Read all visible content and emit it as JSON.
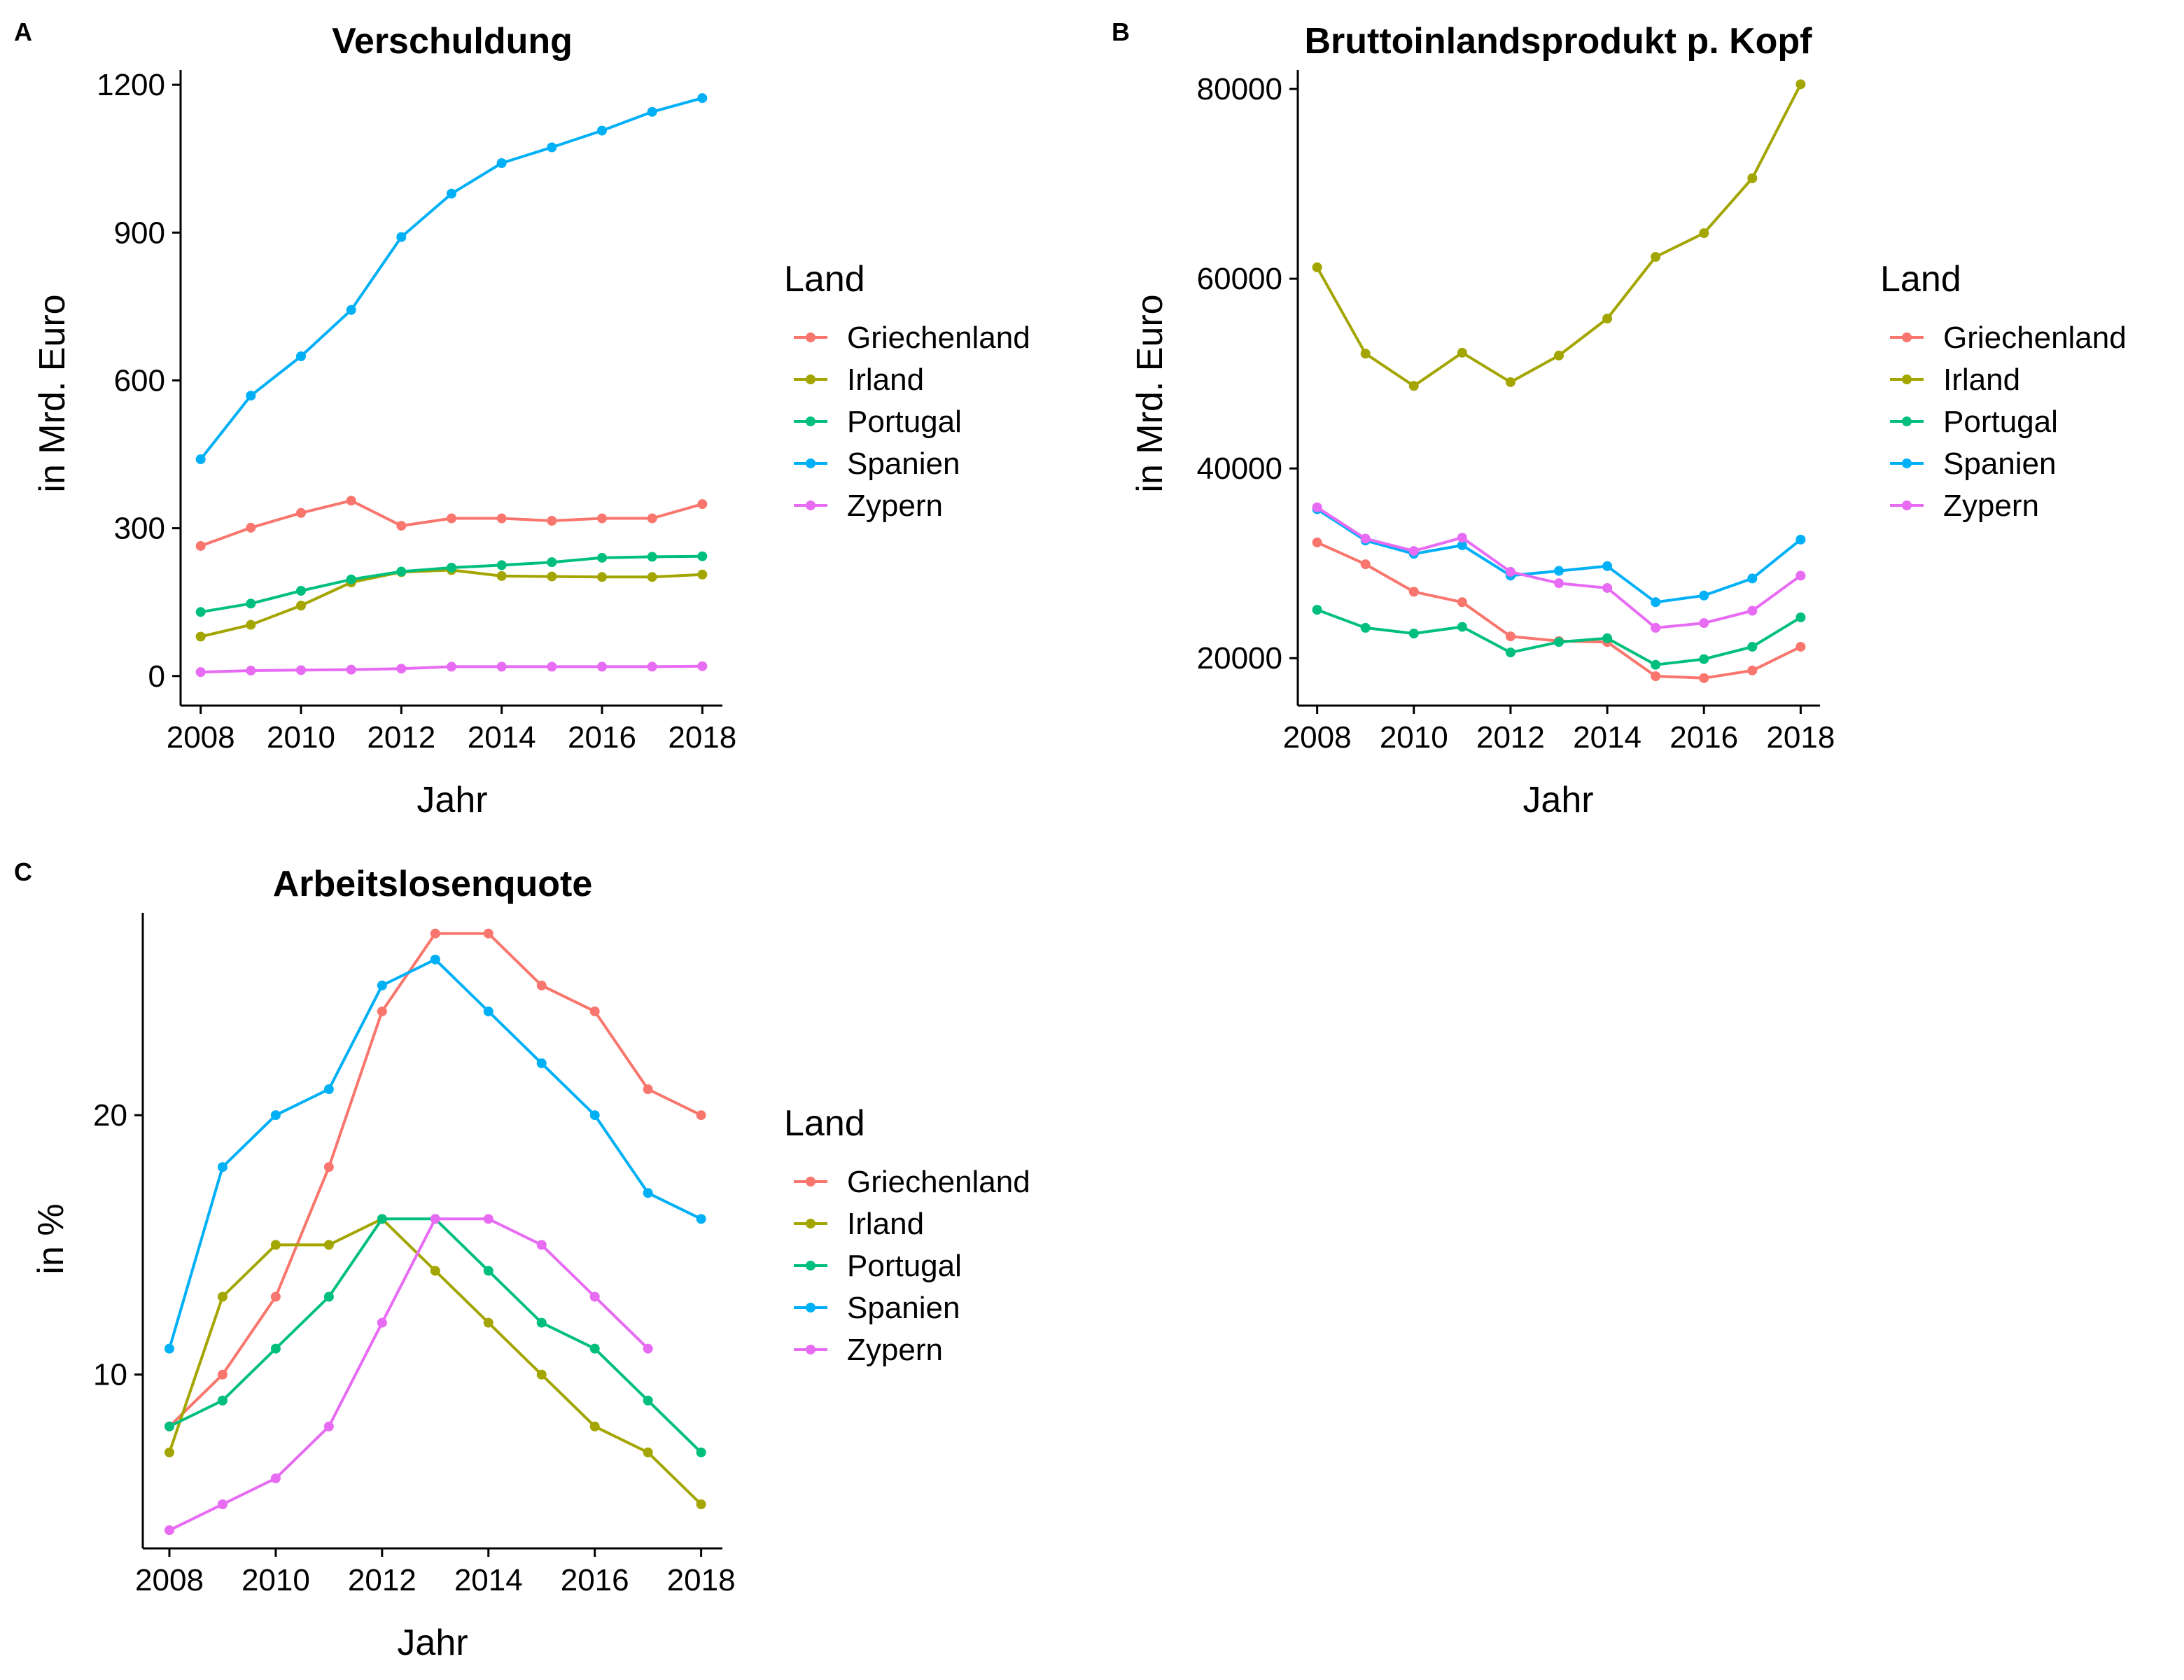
{
  "colors": {
    "Griechenland": "#F8766D",
    "Irland": "#A3A500",
    "Portugal": "#00BF7D",
    "Spanien": "#00B0F6",
    "Zypern": "#E76BF3"
  },
  "chart_data": [
    {
      "panel": "A",
      "type": "line",
      "title": "Verschuldung",
      "xlabel": "Jahr",
      "ylabel": "in Mrd. Euro",
      "legend_title": "Land",
      "legend_position": "right",
      "grid": false,
      "x": [
        2008,
        2009,
        2010,
        2011,
        2012,
        2013,
        2014,
        2015,
        2016,
        2017,
        2018
      ],
      "xlim": [
        2007.6,
        2018.4
      ],
      "ylim": [
        -60,
        1230
      ],
      "xticks": [
        2008,
        2010,
        2012,
        2014,
        2016,
        2018
      ],
      "yticks": [
        0,
        300,
        600,
        900,
        1200
      ],
      "series": [
        {
          "name": "Griechenland",
          "values": [
            264,
            301,
            331,
            356,
            305,
            320,
            320,
            315,
            320,
            320,
            349
          ]
        },
        {
          "name": "Irland",
          "values": [
            80,
            104,
            143,
            190,
            211,
            215,
            203,
            202,
            201,
            201,
            206
          ]
        },
        {
          "name": "Portugal",
          "values": [
            130,
            147,
            173,
            196,
            212,
            220,
            225,
            231,
            240,
            242,
            243
          ]
        },
        {
          "name": "Spanien",
          "values": [
            440,
            569,
            649,
            743,
            891,
            979,
            1041,
            1073,
            1107,
            1145,
            1173
          ]
        },
        {
          "name": "Zypern",
          "values": [
            8,
            11,
            12,
            13,
            15,
            19,
            19,
            19,
            19,
            19,
            20
          ]
        }
      ]
    },
    {
      "panel": "B",
      "type": "line",
      "title": "Bruttoinlandsprodukt p. Kopf",
      "xlabel": "Jahr",
      "ylabel": "in Mrd. Euro",
      "legend_title": "Land",
      "legend_position": "right",
      "grid": false,
      "x": [
        2008,
        2009,
        2010,
        2011,
        2012,
        2013,
        2014,
        2015,
        2016,
        2017,
        2018
      ],
      "xlim": [
        2007.6,
        2018.4
      ],
      "ylim": [
        15000,
        82000
      ],
      "xticks": [
        2008,
        2010,
        2012,
        2014,
        2016,
        2018
      ],
      "yticks": [
        20000,
        40000,
        60000,
        80000
      ],
      "series": [
        {
          "name": "Griechenland",
          "values": [
            32200,
            29900,
            27000,
            25900,
            22300,
            21800,
            21700,
            18100,
            17900,
            18700,
            21200
          ]
        },
        {
          "name": "Irland",
          "values": [
            61200,
            52100,
            48700,
            52200,
            49100,
            51900,
            55800,
            62300,
            64800,
            70600,
            80500
          ]
        },
        {
          "name": "Portugal",
          "values": [
            25100,
            23200,
            22600,
            23300,
            20600,
            21700,
            22100,
            19300,
            19900,
            21200,
            24300
          ]
        },
        {
          "name": "Spanien",
          "values": [
            35700,
            32400,
            31000,
            31900,
            28700,
            29200,
            29700,
            25900,
            26600,
            28400,
            32500
          ]
        },
        {
          "name": "Zypern",
          "values": [
            35900,
            32600,
            31300,
            32700,
            29100,
            27900,
            27400,
            23200,
            23700,
            25000,
            28700
          ]
        }
      ]
    },
    {
      "panel": "C",
      "type": "line",
      "title": "Arbeitslosenquote",
      "xlabel": "Jahr",
      "ylabel": "in %",
      "legend_title": "Land",
      "legend_position": "right",
      "grid": false,
      "x": [
        2008,
        2009,
        2010,
        2011,
        2012,
        2013,
        2014,
        2015,
        2016,
        2017,
        2018
      ],
      "xlim": [
        2007.5,
        2018.4
      ],
      "ylim": [
        3.3,
        27.8
      ],
      "xticks": [
        2008,
        2010,
        2012,
        2014,
        2016,
        2018
      ],
      "yticks": [
        10,
        20
      ],
      "series": [
        {
          "name": "Griechenland",
          "values": [
            8,
            10,
            13,
            18,
            24,
            27,
            27,
            25,
            24,
            21,
            20
          ]
        },
        {
          "name": "Irland",
          "values": [
            7,
            13,
            15,
            15,
            16,
            14,
            12,
            10,
            8,
            7,
            5
          ]
        },
        {
          "name": "Portugal",
          "values": [
            8,
            9,
            11,
            13,
            16,
            16,
            14,
            12,
            11,
            9,
            7
          ]
        },
        {
          "name": "Spanien",
          "values": [
            11,
            18,
            20,
            21,
            25,
            26,
            24,
            22,
            20,
            17,
            16
          ]
        },
        {
          "name": "Zypern",
          "values": [
            4,
            5,
            6,
            8,
            12,
            16,
            16,
            15,
            13,
            11,
            null
          ]
        }
      ]
    }
  ]
}
